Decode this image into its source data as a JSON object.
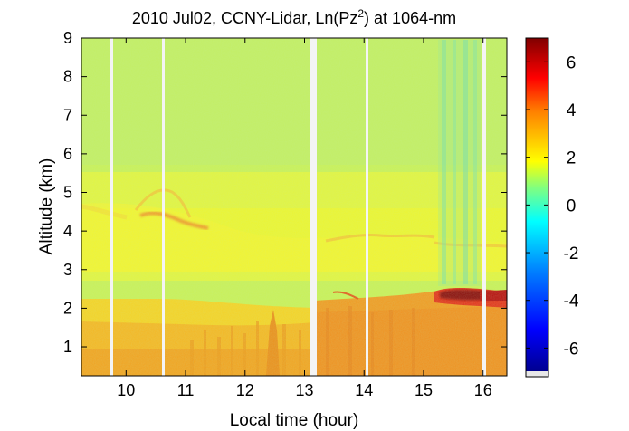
{
  "chart_data": {
    "type": "heatmap",
    "title_main": "2010 Jul02, CCNY-Lidar, Ln(Pz",
    "title_sup": "2",
    "title_end": ") at 1064-nm",
    "xlabel": "Local time (hour)",
    "ylabel": "Altitude (km)",
    "xlim": [
      9.25,
      16.4
    ],
    "ylim": [
      0.25,
      9.0
    ],
    "x_ticks": [
      "10",
      "11",
      "12",
      "13",
      "14",
      "15",
      "16"
    ],
    "y_ticks": [
      "1",
      "2",
      "3",
      "4",
      "5",
      "6",
      "7",
      "8",
      "9"
    ],
    "colorbar": {
      "range": [
        -7.2,
        7.0
      ],
      "ticks": [
        "6",
        "4",
        "2",
        "0",
        "-2",
        "-4",
        "-6"
      ]
    },
    "data_gaps_hour": [
      9.75,
      10.65,
      13.13,
      14.02,
      16.02
    ],
    "layers": {
      "boundary_layer_top_km": 2.3,
      "cloud_layer_km": [
        2.2,
        2.6
      ],
      "aerosol_layer_km": [
        3.6,
        4.3
      ]
    }
  }
}
